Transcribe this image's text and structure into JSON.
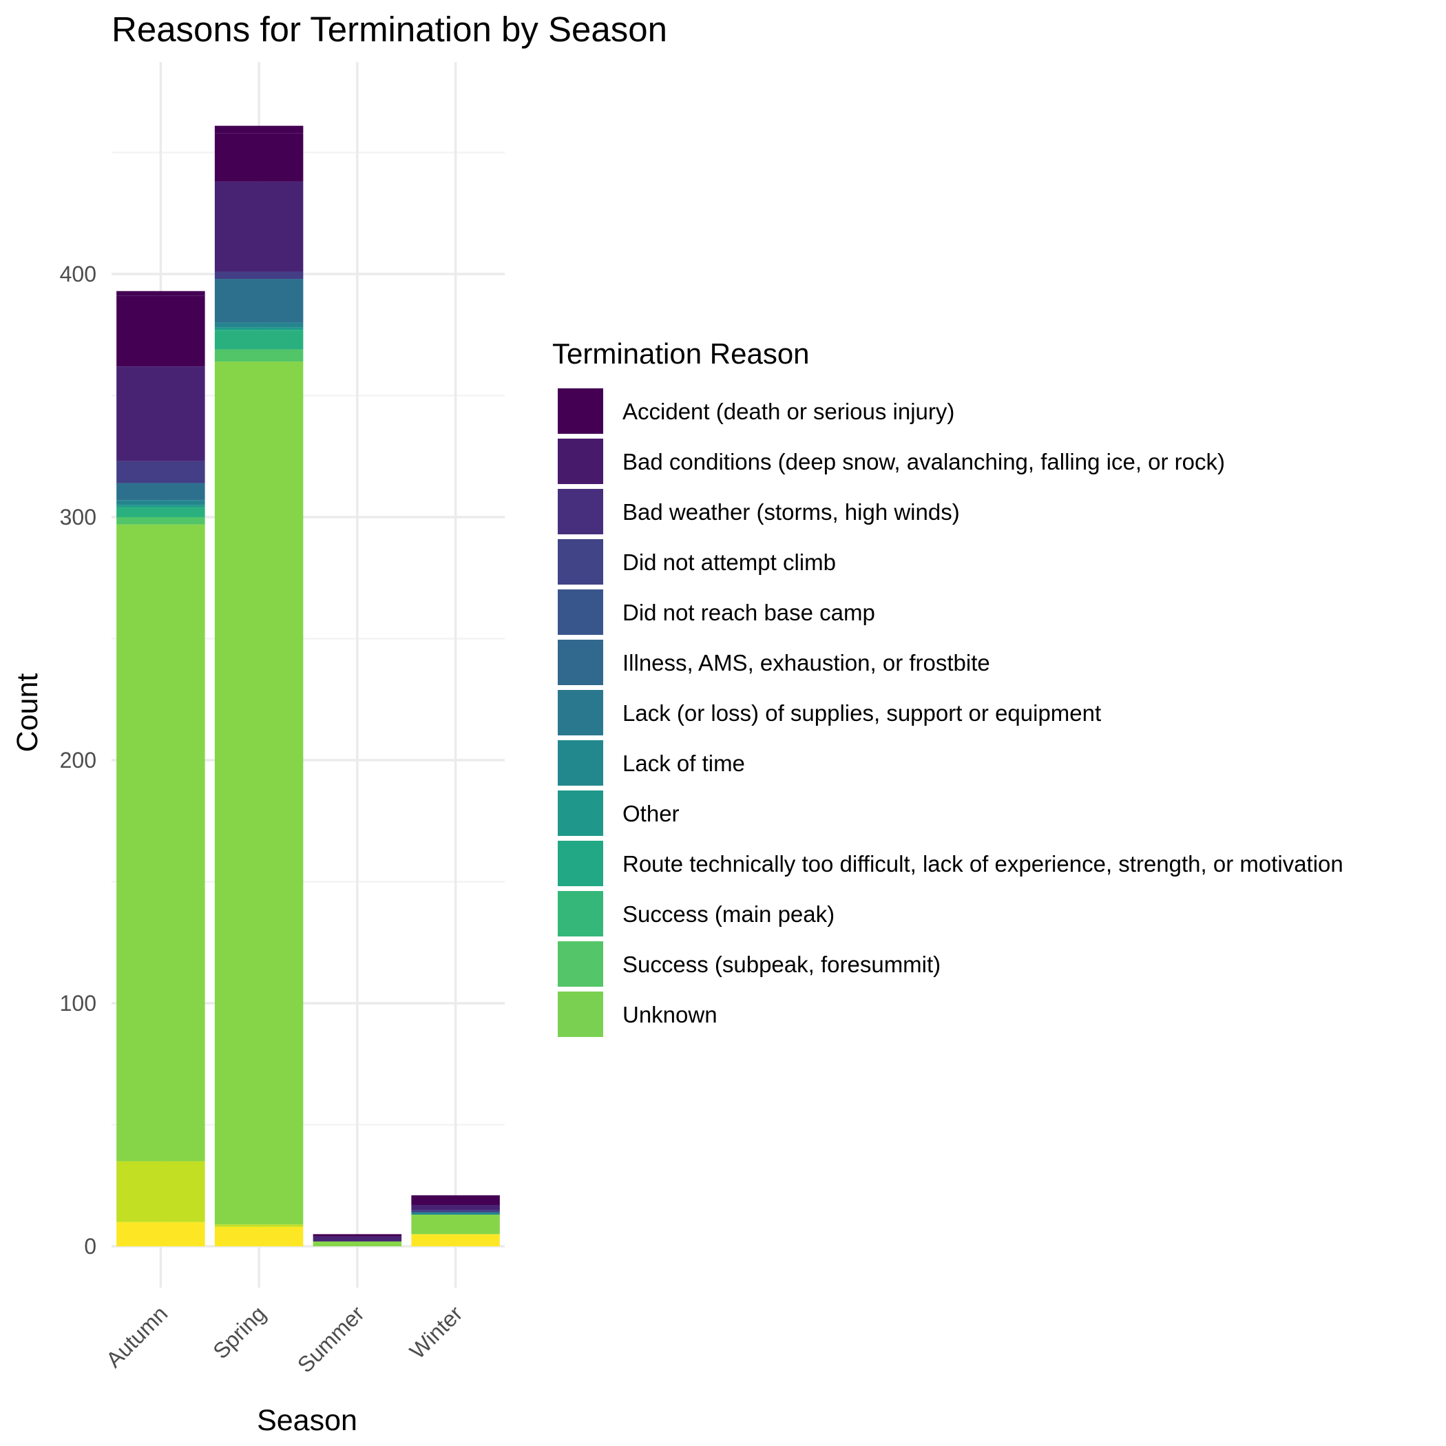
{
  "chart_data": {
    "type": "bar",
    "stacked": true,
    "title": "Reasons for Termination by Season",
    "xlabel": "Season",
    "ylabel": "Count",
    "ylim": [
      -24,
      466
    ],
    "yticks": [
      0,
      100,
      200,
      300,
      400
    ],
    "grid": true,
    "legend": {
      "title": "Termination Reason",
      "position": "right"
    },
    "categories": [
      "Autumn",
      "Spring",
      "Summer",
      "Winter"
    ],
    "series": [
      {
        "name": "Unknown",
        "color": "#FDE725",
        "values": [
          10,
          8,
          0,
          5
        ]
      },
      {
        "name": "Success (subpeak, foresummit)",
        "color": "#C2DF23",
        "values": [
          25,
          1,
          0,
          0
        ]
      },
      {
        "name": "Success (main peak)",
        "color": "#86D549",
        "values": [
          262,
          355,
          2,
          8
        ]
      },
      {
        "name": "Route technically too difficult, lack of experience, strength, or motivation",
        "color": "#52C569",
        "values": [
          3,
          5,
          0,
          0
        ]
      },
      {
        "name": "Other",
        "color": "#2AB07F",
        "values": [
          4,
          8,
          0,
          0
        ]
      },
      {
        "name": "Lack of time",
        "color": "#1E9B8A",
        "values": [
          1,
          1,
          0,
          0
        ]
      },
      {
        "name": "Lack (or loss) of supplies, support or equipment",
        "color": "#25858E",
        "values": [
          2,
          2,
          0,
          1
        ]
      },
      {
        "name": "Illness, AMS, exhaustion, or frostbite",
        "color": "#2D708E",
        "values": [
          7,
          18,
          0,
          0
        ]
      },
      {
        "name": "Did not reach base camp",
        "color": "#38588C",
        "values": [
          0,
          0,
          0,
          0
        ]
      },
      {
        "name": "Did not attempt climb",
        "color": "#433E85",
        "values": [
          9,
          3,
          0,
          1
        ]
      },
      {
        "name": "Bad weather (storms, high winds)",
        "color": "#482374",
        "values": [
          39,
          37,
          2,
          2
        ]
      },
      {
        "name": "Bad conditions (deep snow, avalanching, falling ice, or rock)",
        "color": "#440154",
        "values": [
          29,
          20,
          1,
          4
        ]
      },
      {
        "name": "Accident (death or serious injury)",
        "color": "#440154",
        "values": [
          2,
          3,
          0,
          0
        ]
      }
    ],
    "legend_entries": [
      {
        "name": "Accident (death or serious injury)",
        "color": "#440154"
      },
      {
        "name": "Bad conditions (deep snow, avalanching, falling ice, or rock)",
        "color": "#481A6C"
      },
      {
        "name": "Bad weather (storms, high winds)",
        "color": "#472F7D"
      },
      {
        "name": "Did not attempt climb",
        "color": "#414487"
      },
      {
        "name": "Did not reach base camp",
        "color": "#39568C"
      },
      {
        "name": "Illness, AMS, exhaustion, or frostbite",
        "color": "#31688E"
      },
      {
        "name": "Lack (or loss) of supplies, support or equipment",
        "color": "#2A788E"
      },
      {
        "name": "Lack of time",
        "color": "#23888E"
      },
      {
        "name": "Other",
        "color": "#1F988B"
      },
      {
        "name": "Route technically too difficult, lack of experience, strength, or motivation",
        "color": "#22A884"
      },
      {
        "name": "Success (main peak)",
        "color": "#35B779"
      },
      {
        "name": "Success (subpeak, foresummit)",
        "color": "#54C568"
      },
      {
        "name": "Unknown",
        "color": "#7AD151"
      }
    ]
  }
}
